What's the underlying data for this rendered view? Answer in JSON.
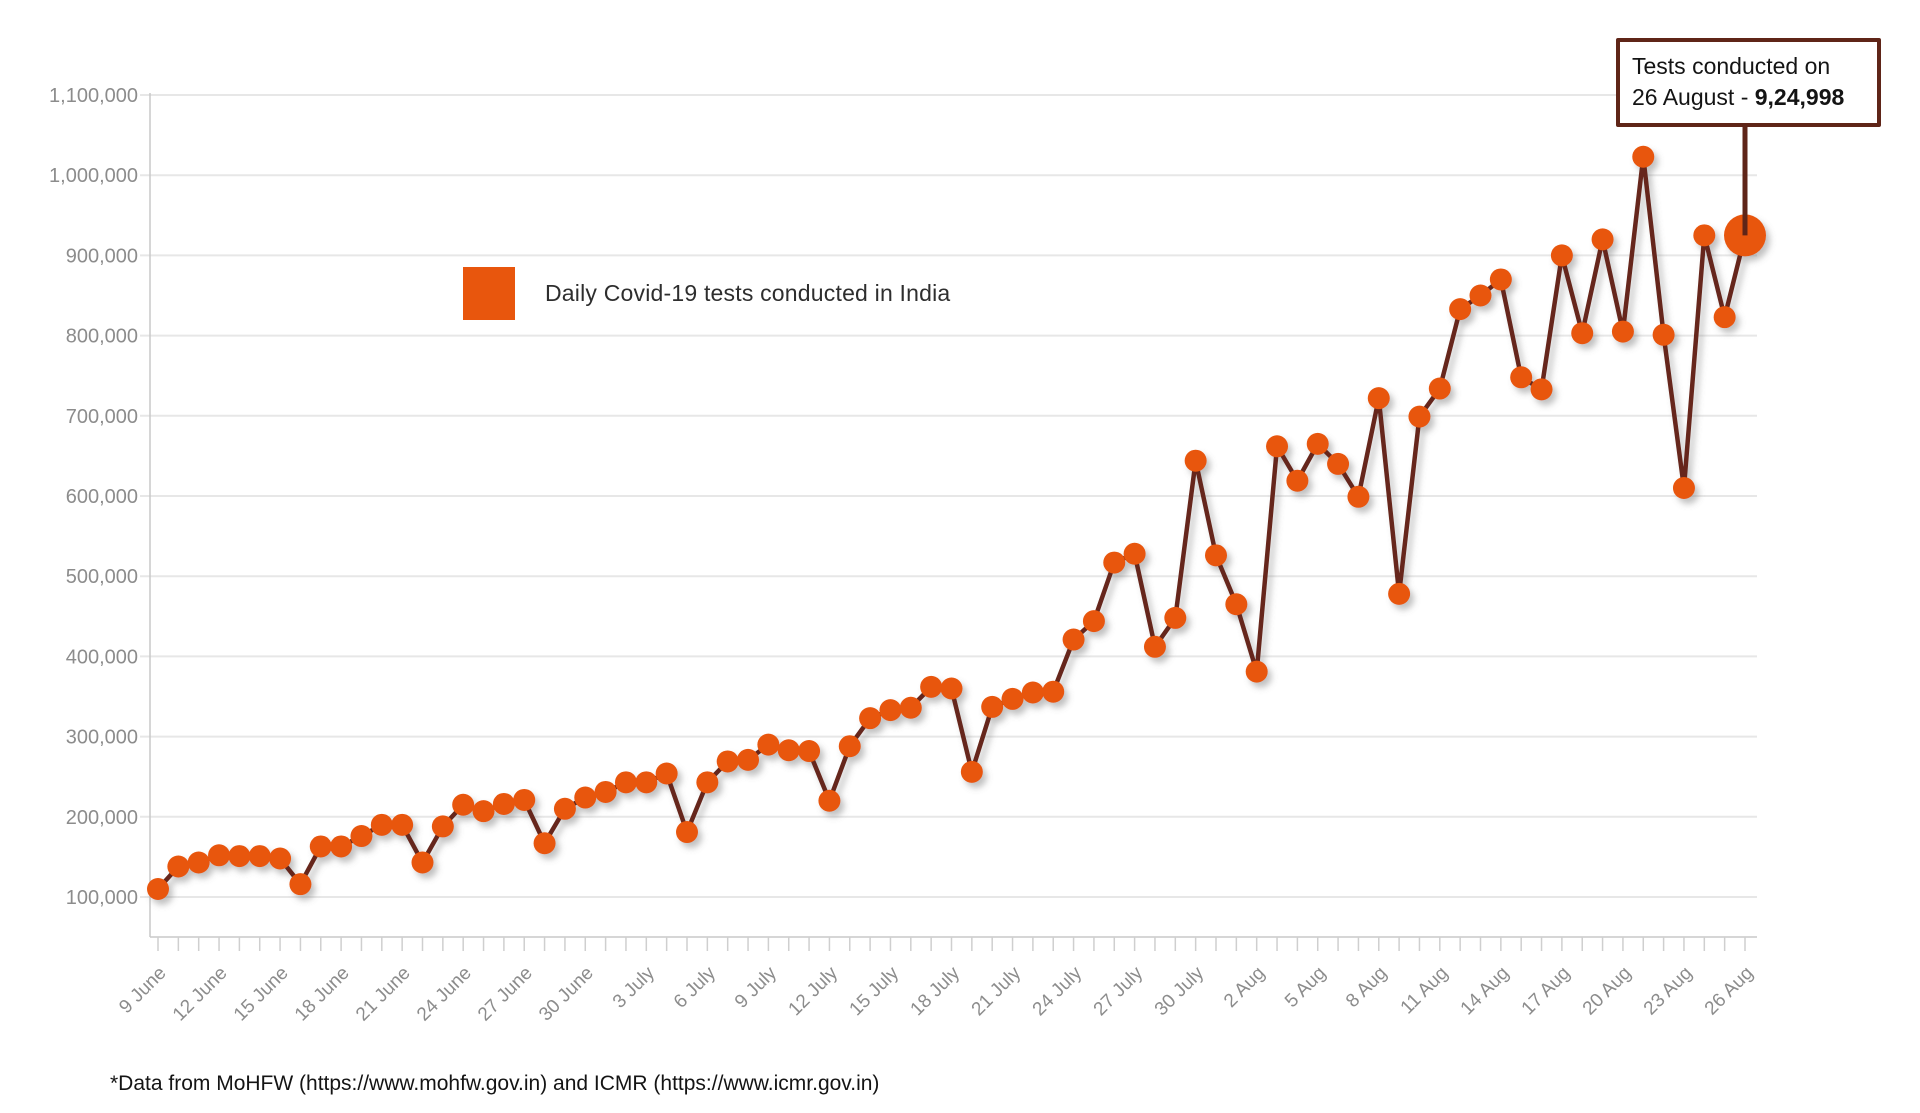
{
  "chart_data": {
    "type": "line",
    "title": "",
    "legend": {
      "label": "Daily Covid-19 tests conducted in India",
      "position": "top-left-inside",
      "swatch_color": "#e8560d"
    },
    "x": [
      "9 June",
      "10 June",
      "11 June",
      "12 June",
      "13 June",
      "14 June",
      "15 June",
      "16 June",
      "17 June",
      "18 June",
      "19 June",
      "20 June",
      "21 June",
      "22 June",
      "23 June",
      "24 June",
      "25 June",
      "26 June",
      "27 June",
      "28 June",
      "29 June",
      "30 June",
      "1 July",
      "2 July",
      "3 July",
      "4 July",
      "5 July",
      "6 July",
      "7 July",
      "8 July",
      "9 July",
      "10 July",
      "11 July",
      "12 July",
      "13 July",
      "14 July",
      "15 July",
      "16 July",
      "17 July",
      "18 July",
      "19 July",
      "20 July",
      "21 July",
      "22 July",
      "23 July",
      "24 July",
      "25 July",
      "26 July",
      "27 July",
      "28 July",
      "29 July",
      "30 July",
      "31 July",
      "1 Aug",
      "2 Aug",
      "3 Aug",
      "4 Aug",
      "5 Aug",
      "6 Aug",
      "7 Aug",
      "8 Aug",
      "9 Aug",
      "10 Aug",
      "11 Aug",
      "12 Aug",
      "13 Aug",
      "14 Aug",
      "15 Aug",
      "16 Aug",
      "17 Aug",
      "18 Aug",
      "19 Aug",
      "20 Aug",
      "21 Aug",
      "22 Aug",
      "23 Aug",
      "24 Aug",
      "25 Aug",
      "26 Aug"
    ],
    "series": [
      {
        "name": "Daily Covid-19 tests conducted in India",
        "values": [
          110000,
          138000,
          143000,
          152000,
          151000,
          151000,
          148000,
          116000,
          163000,
          163000,
          176000,
          190000,
          190000,
          143000,
          188000,
          215000,
          207000,
          216000,
          221000,
          167000,
          210000,
          224000,
          231000,
          243000,
          243000,
          254000,
          181000,
          243000,
          269000,
          271000,
          290000,
          283000,
          282000,
          220000,
          288000,
          323000,
          333000,
          336000,
          362000,
          360000,
          256000,
          337000,
          347000,
          355000,
          356000,
          421000,
          444000,
          517000,
          528000,
          412000,
          448000,
          644000,
          526000,
          465000,
          381000,
          662000,
          619000,
          665000,
          640000,
          599000,
          722000,
          478000,
          699000,
          734000,
          833000,
          850000,
          870000,
          748000,
          733000,
          900000,
          803000,
          920000,
          805000,
          1023000,
          801000,
          610000,
          925000,
          823000,
          924998
        ]
      }
    ],
    "x_label_every": 3,
    "y_ticks": [
      100000,
      200000,
      300000,
      400000,
      500000,
      600000,
      700000,
      800000,
      900000,
      1000000,
      1100000
    ],
    "ylim": [
      50000,
      1130000
    ],
    "grid": "horizontal",
    "annotation": {
      "line1": "Tests conducted on",
      "line2_prefix": "26 August - ",
      "value": "9,24,998",
      "target_date": "26 Aug",
      "target_value": 924998
    }
  },
  "colors": {
    "point": "#e8560d",
    "line": "#66281a",
    "callout_border": "#5f2518",
    "gridline": "#e7e7e7",
    "axis": "#c9c9c9",
    "tick": "#cfcfcf",
    "axis_label": "#8c8c8c"
  },
  "footer": {
    "source_note": "*Data from MoHFW (https://www.mohfw.gov.in) and ICMR (https://www.icmr.gov.in)"
  }
}
